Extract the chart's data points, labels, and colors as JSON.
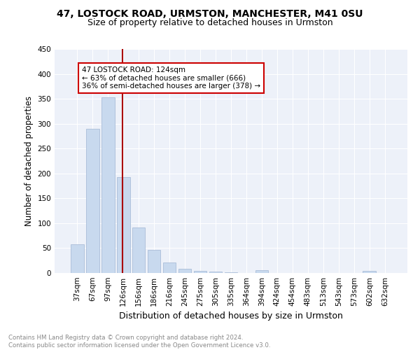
{
  "title1": "47, LOSTOCK ROAD, URMSTON, MANCHESTER, M41 0SU",
  "title2": "Size of property relative to detached houses in Urmston",
  "xlabel": "Distribution of detached houses by size in Urmston",
  "ylabel": "Number of detached properties",
  "categories": [
    "37sqm",
    "67sqm",
    "97sqm",
    "126sqm",
    "156sqm",
    "186sqm",
    "216sqm",
    "245sqm",
    "275sqm",
    "305sqm",
    "335sqm",
    "364sqm",
    "394sqm",
    "424sqm",
    "454sqm",
    "483sqm",
    "513sqm",
    "543sqm",
    "573sqm",
    "602sqm",
    "632sqm"
  ],
  "values": [
    57,
    290,
    353,
    193,
    91,
    46,
    21,
    9,
    4,
    3,
    2,
    0,
    5,
    0,
    0,
    0,
    0,
    0,
    0,
    4,
    0
  ],
  "bar_color": "#c8d9ee",
  "bar_edge_color": "#aabdd8",
  "vline_color": "#aa0000",
  "annotation_text": "47 LOSTOCK ROAD: 124sqm\n← 63% of detached houses are smaller (666)\n36% of semi-detached houses are larger (378) →",
  "annotation_box_facecolor": "#ffffff",
  "annotation_box_edgecolor": "#cc0000",
  "ylim": [
    0,
    450
  ],
  "yticks": [
    0,
    50,
    100,
    150,
    200,
    250,
    300,
    350,
    400,
    450
  ],
  "footnote": "Contains HM Land Registry data © Crown copyright and database right 2024.\nContains public sector information licensed under the Open Government Licence v3.0.",
  "bg_color": "#edf1f9",
  "grid_color": "#ffffff",
  "title1_fontsize": 10,
  "title2_fontsize": 9,
  "xlabel_fontsize": 9,
  "ylabel_fontsize": 8.5,
  "tick_fontsize": 7.5,
  "annot_fontsize": 7.5,
  "footnote_fontsize": 6.2
}
